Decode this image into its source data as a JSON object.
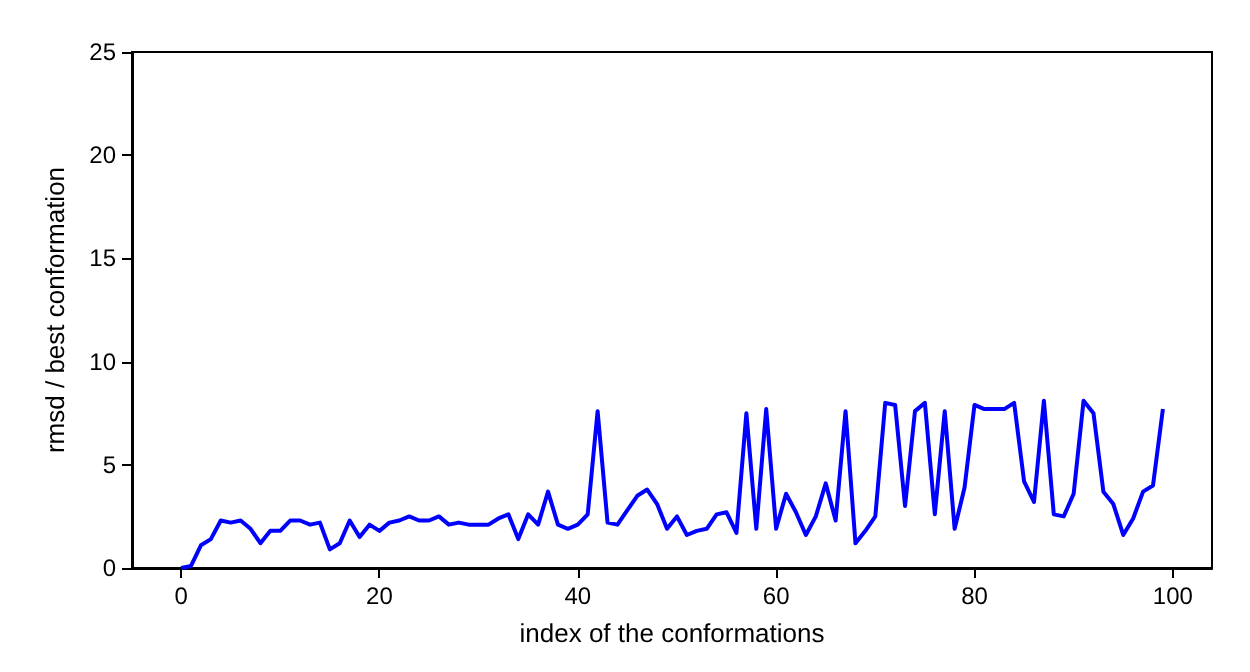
{
  "chart_data": {
    "type": "line",
    "xlabel": "index of the conformations",
    "ylabel": "rmsd / best conformation",
    "x": [
      0,
      1,
      2,
      3,
      4,
      5,
      6,
      7,
      8,
      9,
      10,
      11,
      12,
      13,
      14,
      15,
      16,
      17,
      18,
      19,
      20,
      21,
      22,
      23,
      24,
      25,
      26,
      27,
      28,
      29,
      30,
      31,
      32,
      33,
      34,
      35,
      36,
      37,
      38,
      39,
      40,
      41,
      42,
      43,
      44,
      45,
      46,
      47,
      48,
      49,
      50,
      51,
      52,
      53,
      54,
      55,
      56,
      57,
      58,
      59,
      60,
      61,
      62,
      63,
      64,
      65,
      66,
      67,
      68,
      69,
      70,
      71,
      72,
      73,
      74,
      75,
      76,
      77,
      78,
      79,
      80,
      81,
      82,
      83,
      84,
      85,
      86,
      87,
      88,
      89,
      90,
      91,
      92,
      93,
      94,
      95,
      96,
      97,
      98,
      99
    ],
    "series": [
      {
        "color": "#0000ff",
        "values": [
          0,
          0.1,
          1.1,
          1.4,
          2.3,
          2.2,
          2.3,
          1.9,
          1.2,
          1.8,
          1.8,
          2.3,
          2.3,
          2.1,
          2.2,
          0.9,
          1.2,
          2.3,
          1.5,
          2.1,
          1.8,
          2.2,
          2.3,
          2.5,
          2.3,
          2.3,
          2.5,
          2.1,
          2.2,
          2.1,
          2.1,
          2.1,
          2.4,
          2.6,
          1.4,
          2.6,
          2.1,
          3.7,
          2.1,
          1.9,
          2.1,
          2.6,
          7.6,
          2.2,
          2.1,
          2.8,
          3.5,
          3.8,
          3.1,
          1.9,
          2.5,
          1.6,
          1.8,
          1.9,
          2.6,
          2.7,
          1.7,
          7.5,
          1.9,
          7.7,
          1.9,
          3.6,
          2.7,
          1.6,
          2.5,
          4.1,
          2.3,
          7.6,
          1.2,
          1.8,
          2.5,
          8.0,
          7.9,
          3.0,
          7.6,
          8.0,
          2.6,
          7.6,
          1.9,
          3.9,
          7.9,
          7.7,
          7.7,
          7.7,
          8.0,
          4.2,
          3.2,
          8.1,
          2.6,
          2.5,
          3.6,
          8.1,
          7.5,
          3.7,
          3.1,
          1.6,
          2.4,
          3.7,
          4.0,
          7.7
        ]
      }
    ],
    "xlim": [
      -4.95,
      103.95
    ],
    "xticks": [
      0,
      20,
      40,
      60,
      80,
      100
    ],
    "ylim": [
      0,
      25
    ],
    "yticks": [
      0,
      5,
      10,
      15,
      20,
      25
    ],
    "grid": false,
    "marker": "none",
    "line_style": "solid"
  }
}
